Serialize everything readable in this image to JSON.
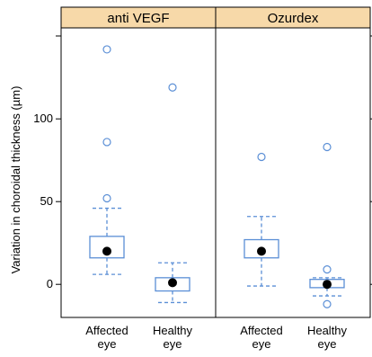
{
  "chart_data": {
    "type": "box",
    "ylabel": "Variation in choroidal thickness (µm)",
    "ylim": [
      -20,
      155
    ],
    "y_ticks": [
      0,
      50,
      100
    ],
    "grid": false,
    "categories": [
      [
        "Affected",
        "eye"
      ],
      [
        "Healthy",
        "eye"
      ]
    ],
    "panels": [
      {
        "name": "anti VEGF",
        "groups": [
          {
            "category": "Affected eye",
            "whisker_low": 6,
            "q1": 16,
            "median": 20,
            "q3": 29,
            "whisker_high": 46,
            "outliers": [
              52,
              86,
              142
            ]
          },
          {
            "category": "Healthy eye",
            "whisker_low": -11,
            "q1": -4,
            "median": 1,
            "q3": 4,
            "whisker_high": 13,
            "outliers": [
              119
            ]
          }
        ]
      },
      {
        "name": "Ozurdex",
        "groups": [
          {
            "category": "Affected eye",
            "whisker_low": -1,
            "q1": 16,
            "median": 20,
            "q3": 27,
            "whisker_high": 41,
            "outliers": [
              77
            ]
          },
          {
            "category": "Healthy eye",
            "whisker_low": -7,
            "q1": -2,
            "median": 0,
            "q3": 3,
            "whisker_high": 4,
            "outliers": [
              9,
              -12,
              83
            ]
          }
        ]
      }
    ],
    "colors": {
      "box": "#5b8fd6",
      "median_dot": "#000000",
      "strip_fill": "#f7d9a9",
      "frame": "#000000"
    }
  }
}
